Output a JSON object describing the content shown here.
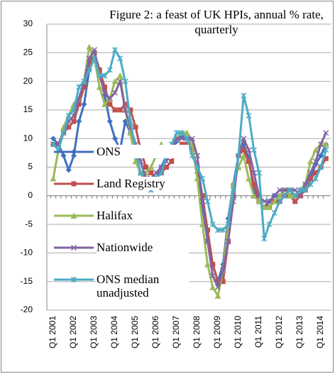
{
  "chart_data": {
    "type": "line",
    "title": "Figure 2: a feast of UK HPIs, annual % rate, quarterly",
    "categories": [
      "Q1 2001",
      null,
      null,
      null,
      "Q1 2002",
      null,
      null,
      null,
      "Q1 2003",
      null,
      null,
      null,
      "Q1 2004",
      null,
      null,
      null,
      "Q1 2005",
      null,
      null,
      null,
      "Q1 2006",
      null,
      null,
      null,
      "Q1 2007",
      null,
      null,
      null,
      "Q1 2008",
      null,
      null,
      null,
      "Q1 2009",
      null,
      null,
      null,
      "Q1 2010",
      null,
      null,
      null,
      "Q1 2011",
      null,
      null,
      null,
      "Q1 2012",
      null,
      null,
      null,
      "Q1 2013",
      null,
      null,
      null,
      "Q1 2014",
      null
    ],
    "series": [
      {
        "name": "ONS",
        "color": "#3f6fc0",
        "values": [
          10,
          9,
          7,
          4.5,
          7,
          13,
          16,
          22,
          24,
          22,
          17.5,
          13,
          10,
          8,
          13,
          11,
          7,
          4,
          3,
          2.5,
          3,
          5,
          7,
          8,
          9.5,
          10.5,
          10,
          8,
          4,
          -2,
          -8,
          -12,
          -15,
          -12,
          -4,
          2,
          7,
          9,
          6.5,
          1,
          -1,
          -2,
          -1,
          0,
          0,
          1,
          1,
          0,
          1,
          2,
          3,
          5.5,
          7,
          9
        ]
      },
      {
        "name": "Land Registry",
        "color": "#c0504d",
        "values": [
          9,
          9,
          11,
          12,
          13,
          16,
          19,
          23,
          25,
          22,
          19,
          16,
          15,
          15,
          16,
          15,
          12,
          8,
          5,
          4,
          3,
          4,
          5,
          6,
          8,
          9,
          9,
          8,
          5,
          0,
          -6,
          -12,
          -15,
          -15,
          -8,
          0,
          7,
          8,
          6,
          2,
          -1,
          -2,
          -2,
          -1,
          -1,
          0,
          0,
          -1,
          0,
          1,
          3,
          4,
          5,
          6.5
        ]
      },
      {
        "name": "Halifax",
        "color": "#9bbb59",
        "values": [
          3,
          8,
          12,
          14,
          16,
          17,
          20,
          26,
          24,
          19,
          16,
          17,
          20,
          21,
          15,
          11,
          6,
          4,
          4,
          5,
          7,
          9,
          8,
          8,
          10,
          11,
          11,
          9,
          3,
          -5,
          -12,
          -16,
          -17.5,
          -13,
          -5,
          2,
          5,
          7,
          3,
          0,
          -1,
          -2,
          -2,
          -1,
          0,
          1,
          0,
          0,
          1,
          2,
          6,
          8,
          9,
          9
        ]
      },
      {
        "name": "Nationwide",
        "color": "#8064a2",
        "values": [
          9,
          9,
          11,
          13,
          14,
          17,
          20,
          24,
          25.5,
          21,
          18,
          17,
          18,
          20,
          15,
          12,
          9,
          6,
          3,
          3,
          4,
          5,
          6,
          8,
          10,
          10,
          10,
          10,
          7,
          -1,
          -8,
          -14,
          -16,
          -13,
          -8,
          -1,
          7,
          10,
          8,
          4,
          0,
          -1,
          -1,
          0,
          1,
          1,
          1,
          1,
          0,
          2,
          4,
          6,
          9,
          11
        ]
      },
      {
        "name": "ONS median unadjusted",
        "color": "#4bacc6",
        "values": [
          9,
          8,
          11,
          14,
          15,
          19,
          20,
          22,
          24,
          21,
          21,
          22,
          25.5,
          24,
          20,
          13,
          8,
          4,
          2,
          1,
          3,
          4,
          7,
          9,
          11,
          11,
          10,
          7,
          5,
          3,
          -1,
          -5,
          -6,
          -6,
          -5,
          1,
          7,
          17.5,
          14,
          8,
          4,
          -7.5,
          -5,
          -3,
          -1,
          0,
          1,
          0,
          1,
          1,
          2,
          3,
          5,
          8
        ]
      }
    ],
    "ylim": [
      -20,
      30
    ],
    "yticks": [
      -20,
      -15,
      -10,
      -5,
      0,
      5,
      10,
      15,
      20,
      25,
      30
    ],
    "grid": true,
    "legend": "left"
  }
}
